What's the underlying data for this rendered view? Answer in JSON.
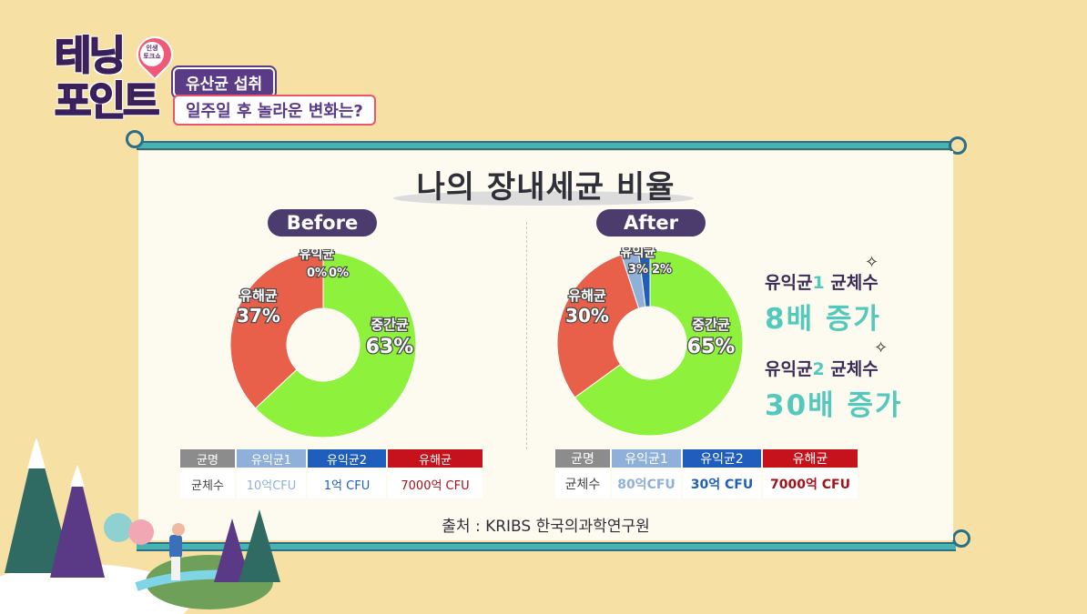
{
  "show": {
    "logo_line1": "테닝",
    "logo_line2": "포인트",
    "pin_line1": "인생",
    "pin_line2": "토크쇼",
    "tag_topic": "유산균 섭취",
    "tag_question": "일주일 후 놀라운 변화는?"
  },
  "board": {
    "title": "나의 장내세균 비율",
    "before_label": "Before",
    "after_label": "After",
    "source": "출처 : KRIBS 한국의과학연구원"
  },
  "colors": {
    "commensal": "#8ef23c",
    "harmful": "#e8604a",
    "beneficial1": "#8fb0d8",
    "beneficial2": "#1f5ebc",
    "header_grey": "#8c8c8c",
    "header_b1": "#8fb0d8",
    "header_b2": "#1f5ebc",
    "header_harm": "#c6131b"
  },
  "chart_data": [
    {
      "type": "pie",
      "title": "Before",
      "slices": [
        {
          "label": "중간균",
          "value": 63,
          "display": "63%",
          "color": "#8ef23c"
        },
        {
          "label": "유해균",
          "value": 37,
          "display": "37%",
          "color": "#e8604a"
        },
        {
          "label": "유익균",
          "value": 0,
          "display": "0%",
          "color": "#8fb0d8"
        },
        {
          "label": "유익균",
          "value": 0,
          "display": "0%",
          "color": "#1f5ebc"
        }
      ]
    },
    {
      "type": "pie",
      "title": "After",
      "slices": [
        {
          "label": "중간균",
          "value": 65,
          "display": "65%",
          "color": "#8ef23c"
        },
        {
          "label": "유해균",
          "value": 30,
          "display": "30%",
          "color": "#e8604a"
        },
        {
          "label": "유익균",
          "value": 3,
          "display": "3%",
          "color": "#8fb0d8"
        },
        {
          "label": "유익균",
          "value": 2,
          "display": "2%",
          "color": "#1f5ebc"
        }
      ]
    },
    {
      "type": "table",
      "title": "Before",
      "headers": [
        "균명",
        "유익균1",
        "유익균2",
        "유해균"
      ],
      "rows": [
        [
          "균체수",
          "10억CFU",
          "1억 CFU",
          "7000억 CFU"
        ]
      ]
    },
    {
      "type": "table",
      "title": "After",
      "headers": [
        "균명",
        "유익균1",
        "유익균2",
        "유해균"
      ],
      "rows": [
        [
          "균체수",
          "80억CFU",
          "30억 CFU",
          "7000억 CFU"
        ]
      ]
    }
  ],
  "highlights": [
    {
      "prefix": "유익균",
      "num": "1",
      "suffix": " 균체수",
      "big": "8배 증가"
    },
    {
      "prefix": "유익균",
      "num": "2",
      "suffix": " 균체수",
      "big": "30배 증가"
    }
  ]
}
